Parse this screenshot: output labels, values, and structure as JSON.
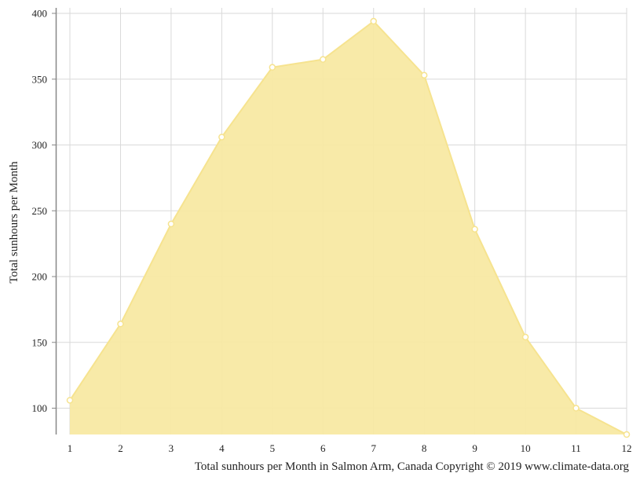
{
  "chart_data": {
    "type": "area",
    "title": "",
    "xlabel": "",
    "ylabel": "Total sunhours per Month",
    "caption": "Total sunhours per Month in Salmon Arm, Canada Copyright © 2019 www.climate-data.org",
    "x": [
      1,
      2,
      3,
      4,
      5,
      6,
      7,
      8,
      9,
      10,
      11,
      12
    ],
    "series": [
      {
        "values": [
          106,
          164,
          240,
          306,
          359,
          365,
          394,
          353,
          236,
          154,
          100,
          80
        ]
      }
    ],
    "xlim": [
      1,
      12
    ],
    "ylim": [
      80,
      400
    ],
    "yticks": [
      100,
      150,
      200,
      250,
      300,
      350,
      400
    ],
    "grid": true,
    "colors": {
      "fill": "#f8e9a3",
      "stroke": "#f6e38f",
      "marker_fill": "#ffffff",
      "grid": "#d9d9d9",
      "axis": "#888888"
    }
  }
}
